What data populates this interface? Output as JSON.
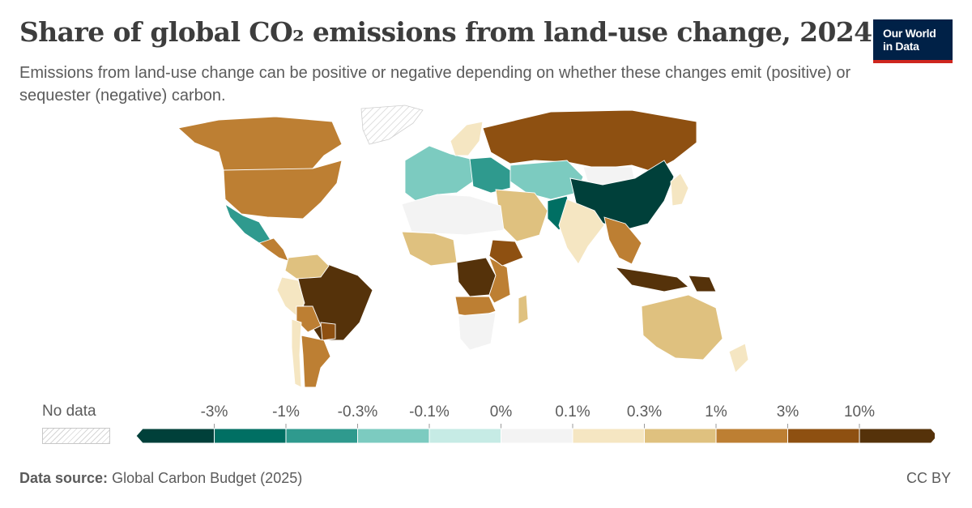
{
  "title": "Share of global CO₂ emissions from land-use change, 2024",
  "subtitle": "Emissions from land-use change can be positive or negative depending on whether these changes emit (positive) or sequester (negative) carbon.",
  "logo": {
    "line1": "Our World",
    "line2": "in Data",
    "bg": "#002147",
    "accent": "#ce261e"
  },
  "legend": {
    "no_data_label": "No data",
    "bins": [
      {
        "color": "#00403a",
        "upper": "-3%"
      },
      {
        "color": "#006f63",
        "upper": "-1%"
      },
      {
        "color": "#2f9a8e",
        "upper": "-0.3%"
      },
      {
        "color": "#7ccbc0",
        "upper": "-0.1%"
      },
      {
        "color": "#c6ebe5",
        "upper": "0%"
      },
      {
        "color": "#f3f3f3",
        "upper": "0.1%"
      },
      {
        "color": "#f5e6c2",
        "upper": "0.3%"
      },
      {
        "color": "#dfc17f",
        "upper": "1%"
      },
      {
        "color": "#bd7f33",
        "upper": "3%"
      },
      {
        "color": "#8e5011",
        "upper": "10%"
      },
      {
        "color": "#55320a",
        "upper": ""
      }
    ]
  },
  "regions": [
    {
      "name": "Canada",
      "bin": 8
    },
    {
      "name": "United States",
      "bin": 8
    },
    {
      "name": "Mexico",
      "bin": 2
    },
    {
      "name": "Central America",
      "bin": 8
    },
    {
      "name": "Brazil",
      "bin": 10
    },
    {
      "name": "Colombia & Venezuela",
      "bin": 7
    },
    {
      "name": "Peru",
      "bin": 6
    },
    {
      "name": "Bolivia",
      "bin": 8
    },
    {
      "name": "Paraguay",
      "bin": 9
    },
    {
      "name": "Argentina",
      "bin": 8
    },
    {
      "name": "Chile",
      "bin": 6
    },
    {
      "name": "Europe West",
      "bin": 3
    },
    {
      "name": "Europe East",
      "bin": 2
    },
    {
      "name": "Scandinavia",
      "bin": 6
    },
    {
      "name": "Russia",
      "bin": 9
    },
    {
      "name": "Kazakhstan & Central Asia",
      "bin": 3
    },
    {
      "name": "Mongolia",
      "bin": 5
    },
    {
      "name": "China",
      "bin": 0
    },
    {
      "name": "Middle East",
      "bin": 7
    },
    {
      "name": "Pakistan",
      "bin": 1
    },
    {
      "name": "India",
      "bin": 6
    },
    {
      "name": "Southeast Asia",
      "bin": 8
    },
    {
      "name": "Indonesia",
      "bin": 10
    },
    {
      "name": "Papua New Guinea",
      "bin": 10
    },
    {
      "name": "Japan",
      "bin": 6
    },
    {
      "name": "North Africa",
      "bin": 5
    },
    {
      "name": "West Africa",
      "bin": 7
    },
    {
      "name": "Central Africa (DRC)",
      "bin": 10
    },
    {
      "name": "East Africa",
      "bin": 8
    },
    {
      "name": "Ethiopia",
      "bin": 9
    },
    {
      "name": "Angola & Zambia",
      "bin": 8
    },
    {
      "name": "Southern Africa",
      "bin": 5
    },
    {
      "name": "Madagascar",
      "bin": 7
    },
    {
      "name": "Australia",
      "bin": 7
    },
    {
      "name": "New Zealand",
      "bin": 6
    }
  ],
  "footer": {
    "source_label": "Data source:",
    "source_text": "Global Carbon Budget (2025)",
    "license": "CC BY"
  }
}
